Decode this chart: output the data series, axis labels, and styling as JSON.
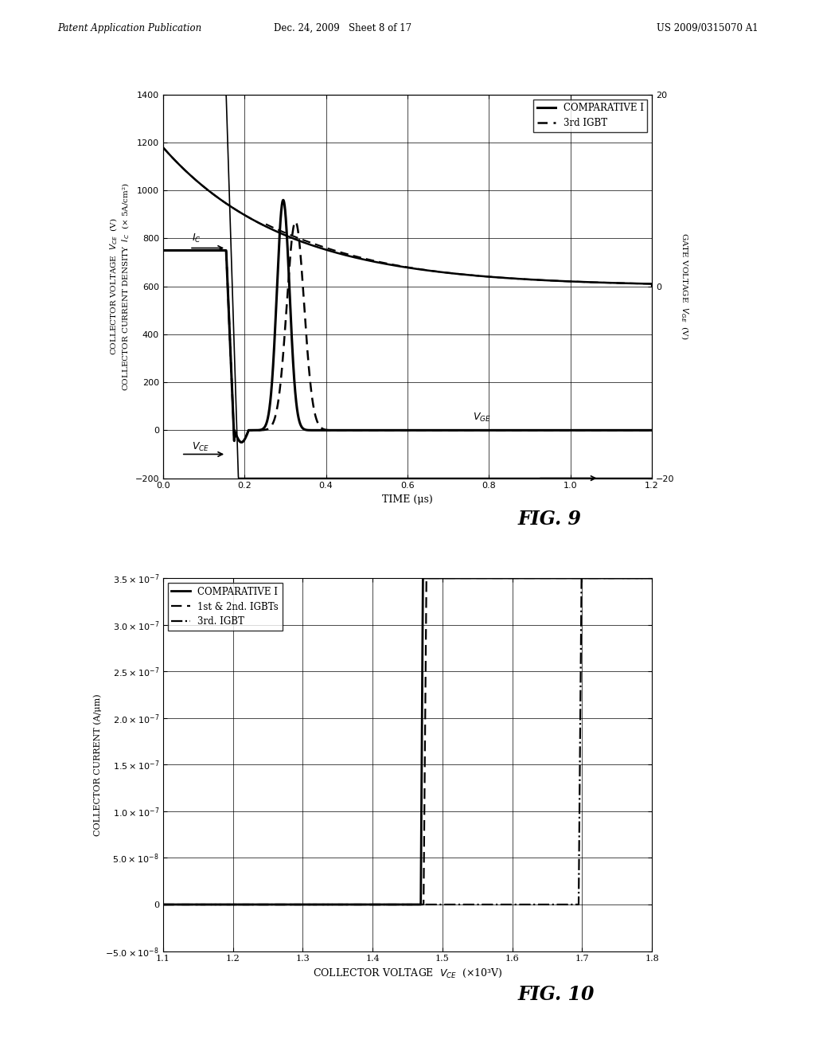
{
  "fig9": {
    "xlim": [
      0,
      1.2
    ],
    "ylim_left": [
      -200,
      1400
    ],
    "ylim_right": [
      -20,
      20
    ],
    "yticks_left": [
      -200,
      0,
      200,
      400,
      600,
      800,
      1000,
      1200,
      1400
    ],
    "yticks_right": [
      -20,
      0,
      20
    ],
    "xticks": [
      0,
      0.2,
      0.4,
      0.6,
      0.8,
      1.0,
      1.2
    ],
    "xlabel": "TIME (μs)",
    "ylabel_left": "COLLECTOR VOLTAGE  $V_{CE}$  (V)\nCOLLECTOR CURRENT DENSITY  $I_C$  (× 5A/cm²)",
    "ylabel_right": "GATE VOLTAGE  $V_{GE}$  (V)",
    "legend1": "COMPARATIVE I",
    "legend2": "3rd IGBT",
    "fig_label": "FIG. 9"
  },
  "fig10": {
    "xlim": [
      1.1,
      1.8
    ],
    "ylim": [
      -5e-08,
      3.5e-07
    ],
    "xticks": [
      1.1,
      1.2,
      1.3,
      1.4,
      1.5,
      1.6,
      1.7,
      1.8
    ],
    "xlabel": "COLLECTOR VOLTAGE  $V_{CE}$  (×10³V)",
    "ylabel": "COLLECTOR CURRENT (A/μm)",
    "legend1": "COMPARATIVE I",
    "legend2": "1st & 2nd. IGBTs",
    "legend3": "3rd. IGBT",
    "fig_label": "FIG. 10"
  },
  "header_left": "Patent Application Publication",
  "header_center": "Dec. 24, 2009   Sheet 8 of 17",
  "header_right": "US 2009/0315070 A1",
  "bg": "#ffffff"
}
